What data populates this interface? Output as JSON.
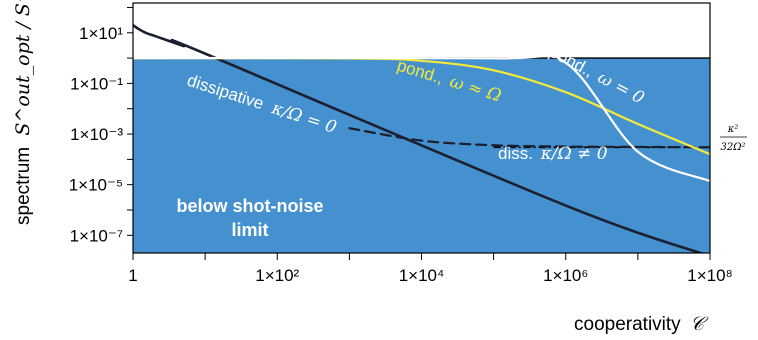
{
  "chart_data": {
    "type": "line",
    "xlabel": "cooperativity",
    "xlabel_symbol": "𝒞",
    "ylabel": "spectrum",
    "ylabel_symbol": "S^out_opt / S^out_SN",
    "x_scale": "log",
    "y_scale": "log",
    "xlim": [
      1,
      100000000
    ],
    "ylim": [
      2e-08,
      150
    ],
    "x_ticks": [
      {
        "value": 1,
        "label": "1"
      },
      {
        "value": 100,
        "label": "1×10²"
      },
      {
        "value": 10000,
        "label": "1×10⁴"
      },
      {
        "value": 1000000,
        "label": "1×10⁶"
      },
      {
        "value": 100000000,
        "label": "1×10⁸"
      }
    ],
    "y_ticks": [
      {
        "value": 10,
        "label": "1×10¹"
      },
      {
        "value": 0.1,
        "label": "1×10⁻¹"
      },
      {
        "value": 0.001,
        "label": "1×10⁻³"
      },
      {
        "value": 1e-05,
        "label": "1×10⁻⁵"
      },
      {
        "value": 1e-07,
        "label": "1×10⁻⁷"
      }
    ],
    "shaded_region": {
      "label_line1": "below shot-noise",
      "label_line2": "limit",
      "upper_value": 1,
      "color": "#4590cf"
    },
    "series": [
      {
        "name": "dissipative κ/Ω = 0",
        "style": "solid",
        "color": "#1a2030",
        "x": [
          1,
          1.2,
          1.5,
          2,
          3,
          5,
          10,
          1000000,
          100000000
        ],
        "y": [
          20,
          14,
          10,
          7.5,
          5,
          3,
          1.5,
          1.5e-06,
          1.5e-08
        ]
      },
      {
        "name": "diss. κ/Ω ≠ 0",
        "style": "dashed",
        "color": "#1a2030",
        "x": [
          1000,
          10000,
          100000,
          1000000,
          10000000,
          100000000
        ],
        "y": [
          0.0017,
          0.00055,
          0.00036,
          0.00032,
          0.00031,
          0.0003
        ]
      },
      {
        "name": "pond., ω ≈ Ω",
        "style": "solid",
        "color": "#f3ea3c",
        "x": [
          1,
          1000,
          10000,
          100000,
          1000000,
          10000000,
          100000000
        ],
        "y": [
          1,
          0.97,
          0.78,
          0.33,
          0.045,
          0.0025,
          0.00016
        ]
      },
      {
        "name": "pond., ω = 0",
        "style": "solid",
        "color": "#ffffff",
        "x": [
          1,
          100000,
          1000000,
          10000000,
          100000000
        ],
        "y": [
          1,
          0.98,
          0.65,
          0.0002,
          1.4e-05
        ]
      }
    ],
    "reference_line": {
      "label": "κ²/32Ω²",
      "value": 0.0003,
      "style": "dash-dot",
      "color": "#000000"
    },
    "annotations": {
      "dissipative": {
        "text": "dissipative",
        "math": "κ/Ω = 0"
      },
      "diss": {
        "text": "diss.",
        "math": "κ/Ω ≠ 0"
      },
      "pond_approx": {
        "text": "pond.,",
        "math": "ω ≈ Ω"
      },
      "pond_zero": {
        "text": "pond.,",
        "math": "ω = 0"
      },
      "ref": {
        "num": "κ²",
        "den": "32Ω²"
      }
    },
    "grid": false,
    "legend": "none"
  }
}
